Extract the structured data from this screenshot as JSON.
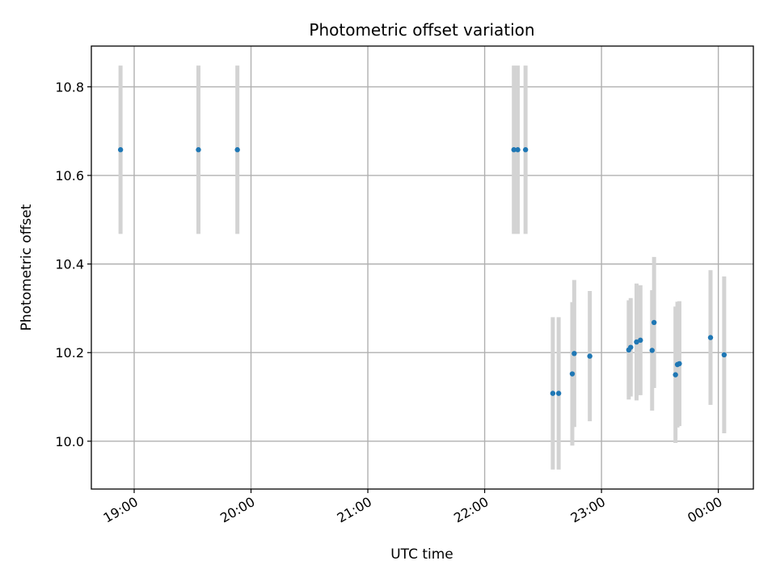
{
  "chart_data": {
    "type": "scatter",
    "title": "Photometric offset variation",
    "xlabel": "UTC time",
    "ylabel": "Photometric offset",
    "grid": true,
    "x_ticks": [
      "19:00",
      "20:00",
      "21:00",
      "22:00",
      "23:00",
      "00:00"
    ],
    "y_ticks": [
      "10.0",
      "10.2",
      "10.4",
      "10.6",
      "10.8"
    ],
    "xlim": [
      "18:38",
      "00:18"
    ],
    "ylim": [
      9.892,
      10.892
    ],
    "colors": {
      "point": "#1f77b4",
      "errorbar": "#d3d3d3",
      "grid": "#b0b0b0"
    },
    "points": [
      {
        "time": "18:53",
        "y": 10.658,
        "err": 0.19
      },
      {
        "time": "19:33",
        "y": 10.658,
        "err": 0.19
      },
      {
        "time": "19:53",
        "y": 10.658,
        "err": 0.19
      },
      {
        "time": "22:15",
        "y": 10.658,
        "err": 0.19
      },
      {
        "time": "22:17",
        "y": 10.658,
        "err": 0.19
      },
      {
        "time": "22:21",
        "y": 10.658,
        "err": 0.19
      },
      {
        "time": "22:35",
        "y": 10.108,
        "err": 0.172
      },
      {
        "time": "22:38",
        "y": 10.108,
        "err": 0.172
      },
      {
        "time": "22:45",
        "y": 10.152,
        "err": 0.162
      },
      {
        "time": "22:46",
        "y": 10.198,
        "err": 0.166
      },
      {
        "time": "22:54",
        "y": 10.192,
        "err": 0.147
      },
      {
        "time": "23:14",
        "y": 10.206,
        "err": 0.112
      },
      {
        "time": "23:15",
        "y": 10.212,
        "err": 0.111
      },
      {
        "time": "23:18",
        "y": 10.224,
        "err": 0.132
      },
      {
        "time": "23:20",
        "y": 10.228,
        "err": 0.124
      },
      {
        "time": "23:26",
        "y": 10.205,
        "err": 0.136
      },
      {
        "time": "23:27",
        "y": 10.268,
        "err": 0.148
      },
      {
        "time": "23:38",
        "y": 10.15,
        "err": 0.154
      },
      {
        "time": "23:39",
        "y": 10.173,
        "err": 0.142
      },
      {
        "time": "23:40",
        "y": 10.175,
        "err": 0.141
      },
      {
        "time": "23:56",
        "y": 10.234,
        "err": 0.152
      },
      {
        "time": "00:03",
        "y": 10.195,
        "err": 0.177
      }
    ]
  }
}
